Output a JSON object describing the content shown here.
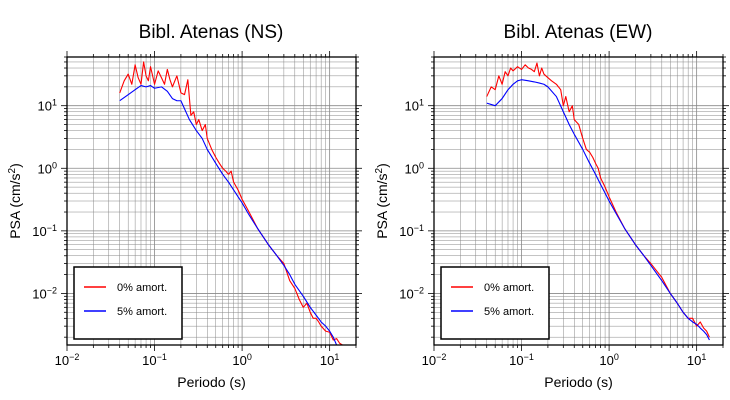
{
  "colors": {
    "series_0": "#ff0000",
    "series_5": "#0000ff",
    "grid": "#888888",
    "axes": "#000000"
  },
  "chart_data": [
    {
      "type": "line",
      "title": "Bibl. Atenas (NS)",
      "xlabel": "Periodo (s)",
      "ylabel_main": "PSA (cm/s",
      "ylabel_sup": "2",
      "ylabel_end": ")",
      "xscale": "log",
      "yscale": "log",
      "xlim": [
        0.01,
        20
      ],
      "ylim": [
        0.0015,
        60
      ],
      "x_ticks": [
        {
          "value": 0.01,
          "base": "10",
          "exp": "−2"
        },
        {
          "value": 0.1,
          "base": "10",
          "exp": "−1"
        },
        {
          "value": 1,
          "base": "10",
          "exp": "0"
        },
        {
          "value": 10,
          "base": "10",
          "exp": "1"
        }
      ],
      "y_ticks": [
        {
          "value": 0.01,
          "base": "10",
          "exp": "−2"
        },
        {
          "value": 0.1,
          "base": "10",
          "exp": "−1"
        },
        {
          "value": 1,
          "base": "10",
          "exp": "0"
        },
        {
          "value": 10,
          "base": "10",
          "exp": "1"
        }
      ],
      "grid": true,
      "legend_position": "bottom-left",
      "series": [
        {
          "name": "0% amort.",
          "color": "#ff0000",
          "points": [
            [
              0.04,
              16
            ],
            [
              0.045,
              25
            ],
            [
              0.05,
              32
            ],
            [
              0.055,
              22
            ],
            [
              0.06,
              45
            ],
            [
              0.065,
              28
            ],
            [
              0.07,
              22
            ],
            [
              0.075,
              50
            ],
            [
              0.08,
              30
            ],
            [
              0.085,
              25
            ],
            [
              0.09,
              42
            ],
            [
              0.1,
              22
            ],
            [
              0.11,
              36
            ],
            [
              0.12,
              28
            ],
            [
              0.13,
              22
            ],
            [
              0.14,
              38
            ],
            [
              0.15,
              26
            ],
            [
              0.16,
              20
            ],
            [
              0.18,
              30
            ],
            [
              0.2,
              16
            ],
            [
              0.22,
              15
            ],
            [
              0.24,
              26
            ],
            [
              0.26,
              7
            ],
            [
              0.28,
              8
            ],
            [
              0.3,
              5
            ],
            [
              0.32,
              6
            ],
            [
              0.35,
              4
            ],
            [
              0.38,
              5
            ],
            [
              0.4,
              3
            ],
            [
              0.45,
              2
            ],
            [
              0.5,
              1.5
            ],
            [
              0.55,
              1.2
            ],
            [
              0.6,
              1.0
            ],
            [
              0.65,
              0.9
            ],
            [
              0.7,
              0.8
            ],
            [
              0.75,
              0.9
            ],
            [
              0.8,
              0.6
            ],
            [
              0.9,
              0.45
            ],
            [
              1.0,
              0.32
            ],
            [
              1.2,
              0.2
            ],
            [
              1.5,
              0.11
            ],
            [
              2,
              0.06
            ],
            [
              2.5,
              0.04
            ],
            [
              3,
              0.03
            ],
            [
              3.5,
              0.016
            ],
            [
              4,
              0.012
            ],
            [
              4.5,
              0.008
            ],
            [
              5,
              0.006
            ],
            [
              5.5,
              0.007
            ],
            [
              6,
              0.005
            ],
            [
              6.5,
              0.004
            ],
            [
              7,
              0.004
            ],
            [
              7.5,
              0.0035
            ],
            [
              8,
              0.003
            ],
            [
              9,
              0.0025
            ],
            [
              10,
              0.0024
            ],
            [
              11,
              0.0018
            ],
            [
              12,
              0.0019
            ],
            [
              13,
              0.0016
            ],
            [
              14,
              0.0015
            ]
          ]
        },
        {
          "name": "5% amort.",
          "color": "#0000ff",
          "points": [
            [
              0.04,
              12
            ],
            [
              0.05,
              15
            ],
            [
              0.06,
              18
            ],
            [
              0.07,
              21
            ],
            [
              0.08,
              20
            ],
            [
              0.09,
              21
            ],
            [
              0.1,
              19
            ],
            [
              0.12,
              20
            ],
            [
              0.14,
              17
            ],
            [
              0.16,
              13
            ],
            [
              0.18,
              12
            ],
            [
              0.2,
              12
            ],
            [
              0.25,
              6
            ],
            [
              0.3,
              4
            ],
            [
              0.35,
              3
            ],
            [
              0.4,
              2
            ],
            [
              0.5,
              1.2
            ],
            [
              0.6,
              0.8
            ],
            [
              0.7,
              0.6
            ],
            [
              0.8,
              0.45
            ],
            [
              0.9,
              0.35
            ],
            [
              1.0,
              0.28
            ],
            [
              1.2,
              0.18
            ],
            [
              1.5,
              0.11
            ],
            [
              2,
              0.06
            ],
            [
              2.5,
              0.04
            ],
            [
              3,
              0.028
            ],
            [
              3.5,
              0.02
            ],
            [
              4,
              0.014
            ],
            [
              5,
              0.009
            ],
            [
              6,
              0.006
            ],
            [
              7,
              0.0045
            ],
            [
              8,
              0.0035
            ],
            [
              9,
              0.003
            ],
            [
              10,
              0.0025
            ],
            [
              11,
              0.002
            ],
            [
              12,
              0.0015
            ]
          ]
        }
      ]
    },
    {
      "type": "line",
      "title": "Bibl. Atenas (EW)",
      "xlabel": "Periodo (s)",
      "ylabel_main": "PSA (cm/s",
      "ylabel_sup": "2",
      "ylabel_end": ")",
      "xscale": "log",
      "yscale": "log",
      "xlim": [
        0.01,
        20
      ],
      "ylim": [
        0.0015,
        60
      ],
      "x_ticks": [
        {
          "value": 0.01,
          "base": "10",
          "exp": "−2"
        },
        {
          "value": 0.1,
          "base": "10",
          "exp": "−1"
        },
        {
          "value": 1,
          "base": "10",
          "exp": "0"
        },
        {
          "value": 10,
          "base": "10",
          "exp": "1"
        }
      ],
      "y_ticks": [
        {
          "value": 0.01,
          "base": "10",
          "exp": "−2"
        },
        {
          "value": 0.1,
          "base": "10",
          "exp": "−1"
        },
        {
          "value": 1,
          "base": "10",
          "exp": "0"
        },
        {
          "value": 10,
          "base": "10",
          "exp": "1"
        }
      ],
      "grid": true,
      "legend_position": "bottom-left",
      "series": [
        {
          "name": "0% amort.",
          "color": "#ff0000",
          "points": [
            [
              0.04,
              14
            ],
            [
              0.045,
              20
            ],
            [
              0.05,
              18
            ],
            [
              0.055,
              30
            ],
            [
              0.06,
              22
            ],
            [
              0.065,
              35
            ],
            [
              0.07,
              30
            ],
            [
              0.075,
              40
            ],
            [
              0.08,
              36
            ],
            [
              0.09,
              42
            ],
            [
              0.1,
              38
            ],
            [
              0.11,
              45
            ],
            [
              0.12,
              40
            ],
            [
              0.13,
              38
            ],
            [
              0.14,
              35
            ],
            [
              0.15,
              48
            ],
            [
              0.16,
              30
            ],
            [
              0.17,
              40
            ],
            [
              0.18,
              32
            ],
            [
              0.2,
              28
            ],
            [
              0.22,
              25
            ],
            [
              0.25,
              22
            ],
            [
              0.28,
              18
            ],
            [
              0.3,
              10
            ],
            [
              0.32,
              14
            ],
            [
              0.35,
              8
            ],
            [
              0.38,
              10
            ],
            [
              0.4,
              6
            ],
            [
              0.45,
              5
            ],
            [
              0.5,
              3
            ],
            [
              0.55,
              2
            ],
            [
              0.6,
              1.8
            ],
            [
              0.65,
              1.5
            ],
            [
              0.7,
              1.2
            ],
            [
              0.75,
              1.0
            ],
            [
              0.8,
              0.7
            ],
            [
              0.9,
              0.5
            ],
            [
              1.0,
              0.35
            ],
            [
              1.2,
              0.2
            ],
            [
              1.5,
              0.11
            ],
            [
              2,
              0.06
            ],
            [
              2.5,
              0.04
            ],
            [
              3,
              0.03
            ],
            [
              4,
              0.018
            ],
            [
              5,
              0.01
            ],
            [
              6,
              0.007
            ],
            [
              7,
              0.005
            ],
            [
              8,
              0.004
            ],
            [
              9,
              0.004
            ],
            [
              10,
              0.003
            ],
            [
              11,
              0.0035
            ],
            [
              12,
              0.0028
            ],
            [
              13,
              0.0025
            ],
            [
              14,
              0.002
            ]
          ]
        },
        {
          "name": "5% amort.",
          "color": "#0000ff",
          "points": [
            [
              0.04,
              11
            ],
            [
              0.05,
              10
            ],
            [
              0.06,
              13
            ],
            [
              0.07,
              18
            ],
            [
              0.08,
              22
            ],
            [
              0.09,
              25
            ],
            [
              0.1,
              26
            ],
            [
              0.12,
              25
            ],
            [
              0.14,
              24
            ],
            [
              0.16,
              23
            ],
            [
              0.18,
              22
            ],
            [
              0.2,
              20
            ],
            [
              0.25,
              14
            ],
            [
              0.3,
              8
            ],
            [
              0.35,
              5
            ],
            [
              0.4,
              3.5
            ],
            [
              0.5,
              2
            ],
            [
              0.6,
              1.2
            ],
            [
              0.7,
              0.8
            ],
            [
              0.8,
              0.55
            ],
            [
              0.9,
              0.4
            ],
            [
              1.0,
              0.3
            ],
            [
              1.2,
              0.19
            ],
            [
              1.5,
              0.11
            ],
            [
              2,
              0.06
            ],
            [
              2.5,
              0.04
            ],
            [
              3,
              0.028
            ],
            [
              4,
              0.016
            ],
            [
              5,
              0.01
            ],
            [
              6,
              0.007
            ],
            [
              7,
              0.005
            ],
            [
              8,
              0.004
            ],
            [
              9,
              0.0035
            ],
            [
              10,
              0.0032
            ],
            [
              11,
              0.0028
            ],
            [
              12,
              0.0025
            ],
            [
              13,
              0.0022
            ],
            [
              14,
              0.0018
            ]
          ]
        }
      ]
    }
  ]
}
